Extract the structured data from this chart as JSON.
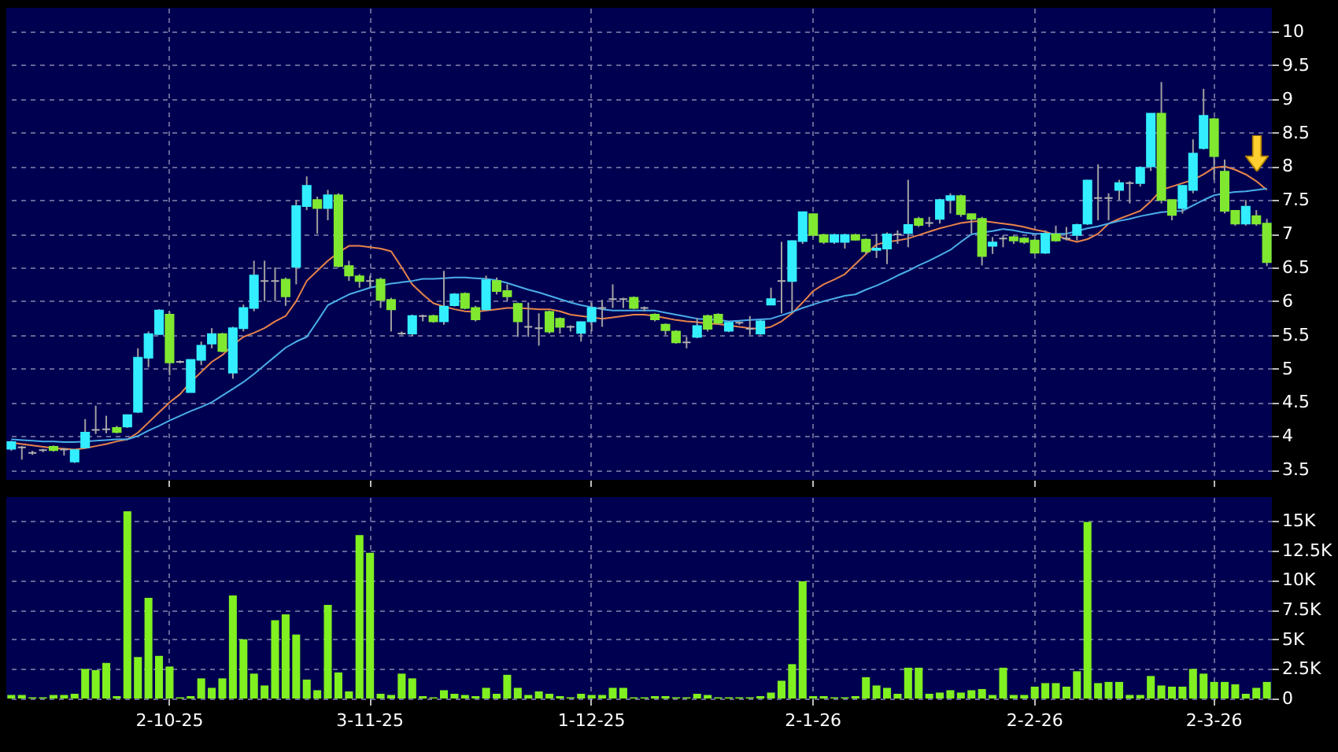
{
  "chart_data": [
    {
      "type": "candlestick",
      "categories": [
        null,
        null,
        null,
        null,
        null,
        null,
        null,
        null,
        null,
        null,
        null,
        null,
        null,
        null,
        null,
        null,
        null,
        null,
        null,
        null,
        null,
        null,
        null,
        null,
        null,
        null,
        null,
        null,
        null,
        null,
        null,
        null,
        null,
        null,
        null,
        null,
        null,
        null,
        null,
        null,
        null,
        null,
        null,
        null,
        null,
        null,
        null,
        null,
        null,
        null,
        null,
        null,
        null,
        null,
        null,
        null,
        null,
        null,
        null,
        null,
        null,
        null,
        null,
        null,
        null,
        null,
        null,
        null,
        null,
        null,
        null,
        null,
        null,
        null,
        null,
        null,
        null,
        null,
        null,
        null,
        null,
        null,
        null,
        null,
        null,
        null,
        null,
        null,
        null,
        null,
        null,
        null,
        null,
        null,
        null,
        null,
        null,
        null,
        null,
        null,
        null,
        null,
        null,
        null,
        null,
        null,
        null,
        null,
        null,
        null,
        null,
        null,
        null,
        null,
        null,
        null,
        null,
        null,
        null,
        null
      ],
      "ohlc": [
        [
          3.81,
          3.93,
          3.78,
          3.91
        ],
        [
          3.83,
          3.85,
          3.65,
          3.83
        ],
        [
          3.75,
          3.78,
          3.72,
          3.75
        ],
        [
          3.79,
          3.81,
          3.76,
          3.79
        ],
        [
          3.84,
          3.86,
          3.77,
          3.79
        ],
        [
          3.8,
          3.82,
          3.71,
          3.8
        ],
        [
          3.62,
          3.8,
          3.6,
          3.79
        ],
        [
          3.83,
          4.25,
          3.82,
          4.05
        ],
        [
          4.09,
          4.45,
          4.03,
          4.09
        ],
        [
          4.1,
          4.3,
          4.04,
          4.1
        ],
        [
          4.12,
          4.15,
          4.04,
          4.06
        ],
        [
          4.14,
          4.32,
          4.12,
          4.31
        ],
        [
          4.36,
          5.3,
          4.34,
          5.16
        ],
        [
          5.16,
          5.55,
          5.02,
          5.51
        ],
        [
          5.51,
          5.88,
          5.5,
          5.86
        ],
        [
          5.8,
          5.85,
          4.9,
          5.09
        ],
        [
          5.1,
          5.12,
          5.08,
          5.1
        ],
        [
          4.65,
          5.13,
          4.65,
          5.13
        ],
        [
          5.13,
          5.4,
          5.05,
          5.34
        ],
        [
          5.37,
          5.6,
          5.3,
          5.51
        ],
        [
          5.51,
          5.53,
          5.24,
          5.26
        ],
        [
          4.94,
          5.62,
          4.85,
          5.6
        ],
        [
          5.6,
          5.95,
          5.55,
          5.9
        ],
        [
          5.9,
          6.6,
          5.85,
          6.38
        ],
        [
          6.3,
          6.6,
          6.0,
          6.3
        ],
        [
          6.3,
          6.5,
          6.0,
          6.3
        ],
        [
          6.32,
          6.35,
          5.93,
          6.07
        ],
        [
          6.51,
          7.5,
          6.25,
          7.41
        ],
        [
          7.41,
          7.85,
          7.35,
          7.71
        ],
        [
          7.5,
          7.55,
          7.0,
          7.38
        ],
        [
          7.38,
          7.65,
          7.2,
          7.57
        ],
        [
          7.57,
          7.6,
          6.5,
          6.52
        ],
        [
          6.52,
          6.6,
          6.3,
          6.38
        ],
        [
          6.37,
          6.4,
          6.2,
          6.3
        ],
        [
          6.3,
          6.38,
          6.2,
          6.3
        ],
        [
          6.32,
          6.35,
          5.9,
          6.02
        ],
        [
          6.02,
          6.05,
          5.55,
          5.88
        ],
        [
          5.52,
          5.55,
          5.5,
          5.52
        ],
        [
          5.52,
          5.8,
          5.48,
          5.78
        ],
        [
          5.78,
          5.8,
          5.7,
          5.78
        ],
        [
          5.78,
          5.8,
          5.68,
          5.7
        ],
        [
          5.7,
          6.45,
          5.65,
          5.92
        ],
        [
          5.94,
          6.12,
          5.92,
          6.1
        ],
        [
          6.11,
          6.13,
          5.88,
          5.9
        ],
        [
          5.9,
          5.93,
          5.7,
          5.73
        ],
        [
          5.88,
          6.38,
          5.86,
          6.31
        ],
        [
          6.3,
          6.35,
          6.1,
          6.15
        ],
        [
          6.15,
          6.25,
          6.0,
          6.07
        ],
        [
          5.96,
          5.98,
          5.47,
          5.7
        ],
        [
          5.62,
          5.98,
          5.47,
          5.62
        ],
        [
          5.6,
          5.82,
          5.34,
          5.6
        ],
        [
          5.84,
          5.86,
          5.52,
          5.55
        ],
        [
          5.74,
          5.76,
          5.52,
          5.62
        ],
        [
          5.62,
          5.64,
          5.55,
          5.62
        ],
        [
          5.53,
          5.7,
          5.4,
          5.69
        ],
        [
          5.7,
          5.98,
          5.55,
          5.9
        ],
        [
          5.9,
          6.02,
          5.62,
          5.9
        ],
        [
          6.03,
          6.25,
          5.9,
          6.03
        ],
        [
          6.03,
          6.05,
          5.9,
          6.03
        ],
        [
          6.05,
          6.07,
          5.88,
          5.9
        ],
        [
          5.9,
          5.92,
          5.85,
          5.9
        ],
        [
          5.8,
          5.82,
          5.7,
          5.73
        ],
        [
          5.65,
          5.67,
          5.5,
          5.57
        ],
        [
          5.55,
          5.57,
          5.37,
          5.39
        ],
        [
          5.39,
          5.47,
          5.3,
          5.39
        ],
        [
          5.47,
          5.75,
          5.45,
          5.63
        ],
        [
          5.78,
          5.8,
          5.55,
          5.59
        ],
        [
          5.8,
          5.82,
          5.65,
          5.68
        ],
        [
          5.56,
          5.7,
          5.54,
          5.68
        ],
        [
          5.68,
          5.7,
          5.65,
          5.68
        ],
        [
          5.59,
          5.78,
          5.5,
          5.59
        ],
        [
          5.52,
          5.72,
          5.5,
          5.7
        ],
        [
          5.95,
          6.2,
          5.95,
          6.03
        ],
        [
          6.3,
          6.88,
          5.82,
          6.3
        ],
        [
          6.3,
          6.9,
          5.85,
          6.89
        ],
        [
          6.89,
          7.33,
          6.85,
          7.32
        ],
        [
          7.29,
          7.3,
          6.95,
          6.98
        ],
        [
          6.98,
          7.0,
          6.85,
          6.88
        ],
        [
          6.88,
          7.0,
          6.85,
          6.98
        ],
        [
          6.88,
          7.0,
          6.78,
          6.98
        ],
        [
          6.98,
          7.0,
          6.9,
          6.91
        ],
        [
          6.91,
          6.93,
          6.7,
          6.74
        ],
        [
          6.76,
          7.0,
          6.64,
          6.78
        ],
        [
          6.78,
          7.02,
          6.55,
          6.99
        ],
        [
          6.99,
          7.05,
          6.85,
          6.99
        ],
        [
          7.01,
          7.8,
          6.8,
          7.13
        ],
        [
          7.22,
          7.25,
          7.1,
          7.13
        ],
        [
          7.16,
          7.25,
          7.1,
          7.16
        ],
        [
          7.22,
          7.52,
          7.15,
          7.5
        ],
        [
          7.5,
          7.6,
          7.3,
          7.56
        ],
        [
          7.56,
          7.58,
          7.25,
          7.29
        ],
        [
          7.29,
          7.3,
          7.0,
          7.22
        ],
        [
          7.22,
          7.25,
          6.53,
          6.67
        ],
        [
          6.82,
          6.95,
          6.7,
          6.87
        ],
        [
          6.93,
          6.98,
          6.8,
          6.93
        ],
        [
          6.95,
          6.97,
          6.85,
          6.9
        ],
        [
          6.93,
          6.95,
          6.85,
          6.88
        ],
        [
          6.9,
          6.92,
          6.7,
          6.72
        ],
        [
          6.72,
          7.05,
          6.7,
          7.0
        ],
        [
          6.99,
          7.12,
          6.88,
          6.9
        ],
        [
          6.93,
          7.1,
          6.9,
          6.93
        ],
        [
          6.98,
          7.15,
          6.9,
          7.13
        ],
        [
          7.15,
          7.8,
          7.13,
          7.79
        ],
        [
          7.53,
          8.03,
          7.2,
          7.53
        ],
        [
          7.53,
          7.6,
          7.2,
          7.53
        ],
        [
          7.65,
          7.8,
          7.5,
          7.75
        ],
        [
          7.75,
          7.78,
          7.45,
          7.75
        ],
        [
          7.75,
          8.0,
          7.7,
          7.98
        ],
        [
          8.0,
          8.78,
          7.93,
          8.78
        ],
        [
          8.78,
          9.25,
          7.45,
          7.5
        ],
        [
          7.5,
          7.5,
          7.2,
          7.28
        ],
        [
          7.38,
          7.72,
          7.3,
          7.71
        ],
        [
          7.65,
          8.4,
          7.6,
          8.19
        ],
        [
          8.27,
          9.15,
          8.25,
          8.75
        ],
        [
          8.7,
          8.72,
          7.8,
          8.15
        ],
        [
          7.92,
          8.1,
          7.3,
          7.34
        ],
        [
          7.34,
          7.35,
          7.12,
          7.15
        ],
        [
          7.15,
          7.5,
          7.12,
          7.4
        ],
        [
          7.26,
          7.35,
          7.12,
          7.15
        ],
        [
          7.15,
          7.22,
          6.52,
          6.58
        ]
      ],
      "colors": [
        "#33eeff",
        "#b0b0b0",
        "#b0b0b0",
        "#b0b0b0",
        "#80e830",
        "#b0b0b0",
        "#33eeff",
        "#33eeff",
        "#b0b0b0",
        "#b0b0b0",
        "#80e830",
        "#33eeff",
        "#33eeff",
        "#33eeff",
        "#33eeff",
        "#80e830",
        "#b0b0b0",
        "#33eeff",
        "#33eeff",
        "#33eeff",
        "#80e830",
        "#33eeff",
        "#33eeff",
        "#33eeff",
        "#b0b0b0",
        "#b0b0b0",
        "#80e830",
        "#33eeff",
        "#33eeff",
        "#80e830",
        "#33eeff",
        "#80e830",
        "#80e830",
        "#80e830",
        "#b0b0b0",
        "#80e830",
        "#80e830",
        "#b0b0b0",
        "#33eeff",
        "#b0b0b0",
        "#80e830",
        "#33eeff",
        "#33eeff",
        "#80e830",
        "#80e830",
        "#33eeff",
        "#80e830",
        "#80e830",
        "#80e830",
        "#b0b0b0",
        "#b0b0b0",
        "#80e830",
        "#80e830",
        "#b0b0b0",
        "#33eeff",
        "#33eeff",
        "#b0b0b0",
        "#b0b0b0",
        "#b0b0b0",
        "#80e830",
        "#b0b0b0",
        "#80e830",
        "#80e830",
        "#80e830",
        "#b0b0b0",
        "#33eeff",
        "#80e830",
        "#80e830",
        "#33eeff",
        "#b0b0b0",
        "#b0b0b0",
        "#33eeff",
        "#33eeff",
        "#b0b0b0",
        "#33eeff",
        "#33eeff",
        "#80e830",
        "#80e830",
        "#33eeff",
        "#33eeff",
        "#80e830",
        "#80e830",
        "#33eeff",
        "#33eeff",
        "#b0b0b0",
        "#33eeff",
        "#80e830",
        "#b0b0b0",
        "#33eeff",
        "#33eeff",
        "#80e830",
        "#80e830",
        "#80e830",
        "#33eeff",
        "#b0b0b0",
        "#80e830",
        "#80e830",
        "#80e830",
        "#33eeff",
        "#80e830",
        "#b0b0b0",
        "#33eeff",
        "#33eeff",
        "#b0b0b0",
        "#b0b0b0",
        "#33eeff",
        "#b0b0b0",
        "#33eeff",
        "#33eeff",
        "#80e830",
        "#80e830",
        "#33eeff",
        "#33eeff",
        "#33eeff",
        "#80e830",
        "#80e830",
        "#80e830",
        "#33eeff",
        "#80e830",
        "#80e830"
      ],
      "series": [
        {
          "type": "line",
          "color": "#e8844a",
          "values": [
            3.9,
            3.88,
            3.86,
            3.84,
            3.82,
            3.81,
            3.8,
            3.82,
            3.85,
            3.88,
            3.92,
            3.95,
            4.05,
            4.2,
            4.35,
            4.5,
            4.62,
            4.8,
            4.95,
            5.1,
            5.2,
            5.35,
            5.47,
            5.53,
            5.6,
            5.7,
            5.78,
            6.0,
            6.3,
            6.45,
            6.6,
            6.72,
            6.82,
            6.82,
            6.8,
            6.78,
            6.74,
            6.5,
            6.25,
            6.1,
            5.97,
            5.92,
            5.88,
            5.85,
            5.84,
            5.86,
            5.88,
            5.9,
            5.9,
            5.89,
            5.88,
            5.88,
            5.85,
            5.8,
            5.78,
            5.76,
            5.74,
            5.76,
            5.78,
            5.8,
            5.8,
            5.78,
            5.75,
            5.72,
            5.7,
            5.69,
            5.67,
            5.66,
            5.64,
            5.62,
            5.6,
            5.59,
            5.62,
            5.7,
            5.82,
            5.98,
            6.15,
            6.25,
            6.32,
            6.4,
            6.55,
            6.7,
            6.84,
            6.88,
            6.9,
            6.93,
            6.98,
            7.03,
            7.08,
            7.12,
            7.16,
            7.18,
            7.19,
            7.17,
            7.15,
            7.13,
            7.1,
            7.06,
            7.03,
            6.98,
            6.92,
            6.88,
            6.92,
            7.0,
            7.15,
            7.22,
            7.28,
            7.34,
            7.48,
            7.65,
            7.7,
            7.75,
            7.8,
            7.88,
            7.98,
            8.0,
            7.95,
            7.88,
            7.78,
            7.65
          ]
        },
        {
          "type": "line",
          "color": "#4aaee8",
          "values": [
            3.95,
            3.94,
            3.93,
            3.92,
            3.92,
            3.91,
            3.91,
            3.92,
            3.93,
            3.94,
            3.95,
            3.95,
            4.0,
            4.08,
            4.15,
            4.23,
            4.3,
            4.37,
            4.43,
            4.5,
            4.6,
            4.7,
            4.8,
            4.92,
            5.05,
            5.18,
            5.31,
            5.4,
            5.47,
            5.7,
            5.94,
            6.02,
            6.1,
            6.15,
            6.2,
            6.23,
            6.26,
            6.28,
            6.3,
            6.33,
            6.33,
            6.34,
            6.35,
            6.35,
            6.34,
            6.33,
            6.31,
            6.27,
            6.22,
            6.17,
            6.13,
            6.08,
            6.03,
            5.98,
            5.94,
            5.91,
            5.88,
            5.86,
            5.86,
            5.86,
            5.86,
            5.86,
            5.83,
            5.8,
            5.77,
            5.74,
            5.73,
            5.72,
            5.7,
            5.71,
            5.72,
            5.73,
            5.74,
            5.79,
            5.84,
            5.9,
            5.95,
            6.0,
            6.04,
            6.08,
            6.1,
            6.17,
            6.23,
            6.3,
            6.38,
            6.45,
            6.53,
            6.6,
            6.68,
            6.76,
            6.88,
            6.99,
            7.02,
            7.04,
            7.07,
            7.05,
            7.02,
            7.0,
            7.0,
            7.0,
            7.0,
            7.04,
            7.08,
            7.11,
            7.15,
            7.19,
            7.22,
            7.26,
            7.29,
            7.32,
            7.33,
            7.34,
            7.42,
            7.5,
            7.57,
            7.6,
            7.62,
            7.63,
            7.65,
            7.67
          ]
        }
      ],
      "ylim": [
        3.35,
        10.35
      ],
      "yticks": [
        3.5,
        4,
        4.5,
        5,
        5.5,
        6,
        6.5,
        7,
        7.5,
        8,
        8.5,
        9,
        9.5,
        10
      ],
      "grid": true,
      "tick_labels": "y"
    },
    {
      "type": "bar",
      "categories": [
        null,
        null,
        null,
        null,
        null,
        null,
        null,
        null,
        null,
        null,
        null,
        null,
        null,
        null,
        null,
        "2-10-25",
        null,
        null,
        null,
        null,
        null,
        null,
        null,
        null,
        null,
        null,
        null,
        null,
        null,
        null,
        null,
        null,
        null,
        null,
        "3-11-25",
        null,
        null,
        null,
        null,
        null,
        null,
        null,
        null,
        null,
        null,
        null,
        null,
        null,
        null,
        null,
        null,
        null,
        null,
        null,
        null,
        "1-12-25",
        null,
        null,
        null,
        null,
        null,
        null,
        null,
        null,
        null,
        null,
        null,
        null,
        null,
        null,
        null,
        null,
        null,
        null,
        null,
        null,
        "2-1-26",
        null,
        null,
        null,
        null,
        null,
        null,
        null,
        null,
        null,
        null,
        null,
        null,
        null,
        null,
        null,
        null,
        null,
        null,
        null,
        null,
        "2-2-26",
        null,
        null,
        null,
        null,
        null,
        null,
        null,
        null,
        null,
        null,
        null,
        null,
        null,
        null,
        null,
        null,
        "2-3-26",
        null,
        null,
        null,
        null,
        null
      ],
      "values": [
        0.3,
        0.3,
        0.1,
        0.1,
        0.3,
        0.3,
        0.4,
        2.5,
        2.4,
        3.0,
        0.2,
        15.8,
        3.5,
        8.5,
        3.6,
        2.7,
        0.1,
        0.2,
        1.7,
        0.9,
        1.7,
        8.7,
        5.0,
        2.1,
        1.1,
        6.6,
        7.1,
        5.4,
        1.6,
        0.7,
        7.9,
        2.2,
        0.6,
        13.8,
        12.3,
        0.4,
        0.3,
        2.1,
        1.7,
        0.2,
        0.1,
        0.7,
        0.4,
        0.3,
        0.2,
        0.9,
        0.4,
        2.0,
        0.9,
        0.3,
        0.6,
        0.4,
        0.2,
        0.1,
        0.4,
        0.3,
        0.3,
        0.9,
        0.9,
        0.1,
        0.1,
        0.2,
        0.2,
        0.1,
        0.1,
        0.4,
        0.3,
        0.1,
        0.1,
        0.1,
        0.1,
        0.2,
        0.5,
        1.5,
        2.9,
        9.9,
        0.2,
        0.2,
        0.1,
        0.1,
        0.2,
        1.8,
        1.1,
        0.9,
        0.4,
        2.6,
        2.6,
        0.4,
        0.5,
        0.7,
        0.5,
        0.7,
        0.8,
        0.3,
        2.6,
        0.3,
        0.3,
        1.0,
        1.3,
        1.3,
        1.0,
        2.3,
        14.9,
        1.3,
        1.4,
        1.4,
        0.3,
        0.3,
        1.9,
        1.1,
        1.0,
        1.0,
        2.5,
        2.1,
        1.4,
        1.4,
        1.2,
        0.4,
        0.9,
        1.4
      ],
      "color": "#80f020",
      "ylim": [
        0,
        17
      ],
      "yticks": [
        0,
        {
          "value": 2.5,
          "label": "2.5K"
        },
        {
          "value": 5,
          "label": "5K"
        },
        {
          "value": 7.5,
          "label": "7.5K"
        },
        {
          "value": 10,
          "label": "10K"
        },
        {
          "value": 12.5,
          "label": "12.5K"
        },
        {
          "value": 15,
          "label": "15K"
        }
      ],
      "grid": true
    }
  ]
}
